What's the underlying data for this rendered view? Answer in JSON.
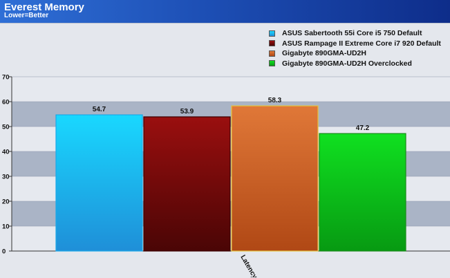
{
  "header": {
    "title": "Everest Memory",
    "subtitle": "Lower=Better"
  },
  "chart_data": {
    "type": "bar",
    "title": "Everest Memory",
    "subtitle": "Lower=Better",
    "categories": [
      "Latency"
    ],
    "ylim": [
      0,
      70
    ],
    "yticks": [
      0,
      10,
      20,
      30,
      40,
      50,
      60,
      70
    ],
    "grid": true,
    "legend_position": "top-right",
    "series": [
      {
        "name": "ASUS Sabertooth 55i Core i5 750 Default",
        "values": [
          54.7
        ],
        "color": "#19d8ff",
        "color_dark": "#1f8fd8",
        "label": "54.7"
      },
      {
        "name": "ASUS Rampage II Extreme Core i7 920 Default",
        "values": [
          53.9
        ],
        "color": "#9a0f0f",
        "color_dark": "#4a0505",
        "label": "53.9"
      },
      {
        "name": "Gigabyte 890GMA-UD2H",
        "values": [
          58.3
        ],
        "color": "#e07838",
        "color_dark": "#b04815",
        "label": "58.3"
      },
      {
        "name": "Gigabyte 890GMA-UD2H Overclocked",
        "values": [
          47.2
        ],
        "color": "#10e020",
        "color_dark": "#079a12",
        "label": "47.2"
      }
    ]
  }
}
